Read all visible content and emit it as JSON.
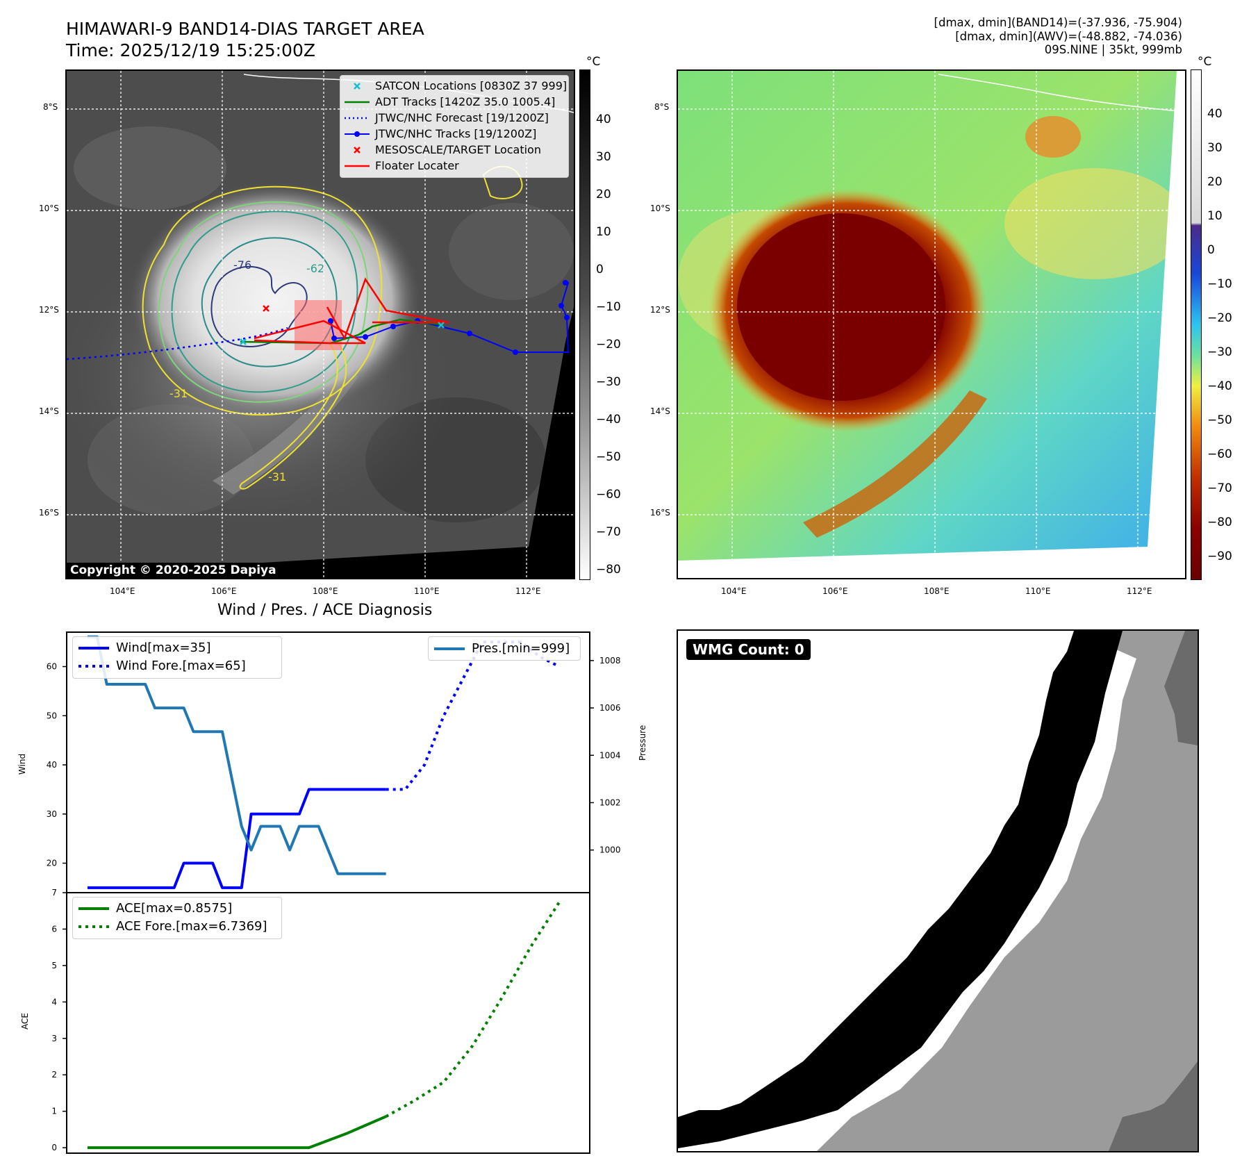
{
  "header": {
    "title_line1": "HIMAWARI-9 BAND14-DIAS TARGET AREA",
    "title_line2": "Time: 2025/12/19 15:25:00Z",
    "info_line1": "[dmax, dmin](BAND14)=(-37.936, -75.904)",
    "info_line2": "[dmax, dmin](AWV)=(-48.882, -74.036)",
    "info_line3": "09S.NINE | 35kt, 999mb"
  },
  "map_axes": {
    "lat_labels": [
      "8°S",
      "10°S",
      "12°S",
      "14°S",
      "16°S"
    ],
    "lon_labels": [
      "104°E",
      "106°E",
      "108°E",
      "110°E",
      "112°E"
    ]
  },
  "ir_panel": {
    "legend": [
      {
        "label": "SATCON Locations [0830Z 37 999]",
        "symbol": "x",
        "color": "#17becf"
      },
      {
        "label": "ADT Tracks [1420Z 35.0 1005.4]",
        "symbol": "line",
        "color": "#008000"
      },
      {
        "label": "JTWC/NHC Forecast [19/1200Z]",
        "symbol": "dotted",
        "color": "#0000ff"
      },
      {
        "label": "JTWC/NHC Tracks [19/1200Z]",
        "symbol": "line-dot",
        "color": "#0000ff"
      },
      {
        "label": "MESOSCALE/TARGET Location",
        "symbol": "x",
        "color": "#ff0000"
      },
      {
        "label": "Floater Locater",
        "symbol": "line",
        "color": "#ff0000"
      }
    ],
    "contour_labels": [
      "-76",
      "-62",
      "-31",
      "-31"
    ],
    "colorbar_unit": "°C",
    "colorbar_ticks": [
      "40",
      "30",
      "20",
      "10",
      "0",
      "−10",
      "−20",
      "−30",
      "−40",
      "−50",
      "−60",
      "−70",
      "−80"
    ],
    "copyright": "Copyright © 2020-2025 Dapiya"
  },
  "awv_panel": {
    "colorbar_unit": "°C",
    "colorbar_ticks": [
      "40",
      "30",
      "20",
      "10",
      "0",
      "−10",
      "−20",
      "−30",
      "−40",
      "−50",
      "−60",
      "−70",
      "−80",
      "−90"
    ]
  },
  "diagnosis": {
    "title": "Wind / Pres. / ACE Diagnosis"
  },
  "wmg_panel": {
    "label": "WMG Count: 0"
  },
  "chart_data": [
    {
      "type": "line",
      "title": "Wind / Pres. / ACE Diagnosis",
      "ylabel": "Wind",
      "y2label": "Pressure",
      "ylim": [
        14,
        67
      ],
      "y2lim": [
        998.2,
        1009.2
      ],
      "yticks": [
        "20",
        "30",
        "40",
        "50",
        "60"
      ],
      "y2ticks": [
        "1000",
        "1002",
        "1004",
        "1006",
        "1008"
      ],
      "series": [
        {
          "name": "Wind[max=35]",
          "axis": "left",
          "color": "#0000ff",
          "style": "solid",
          "x": [
            0,
            1,
            2,
            3,
            4,
            5,
            6,
            7,
            8,
            9,
            10,
            11,
            12,
            13,
            14,
            15,
            16,
            17,
            18,
            19,
            20,
            21,
            22,
            23,
            24,
            25,
            26,
            27,
            28,
            29,
            30,
            31
          ],
          "values": [
            15,
            15,
            15,
            15,
            15,
            15,
            15,
            15,
            15,
            15,
            20,
            20,
            20,
            20,
            15,
            15,
            15,
            30,
            30,
            30,
            30,
            30,
            30,
            35,
            35,
            35,
            35,
            35,
            35,
            35,
            35,
            35
          ]
        },
        {
          "name": "Wind Fore.[max=65]",
          "axis": "left",
          "color": "#0000ff",
          "style": "dotted",
          "x": [
            31,
            33,
            35,
            37,
            39,
            41,
            43,
            45,
            47,
            49
          ],
          "values": [
            35,
            35,
            40,
            50,
            57.5,
            65,
            65,
            65,
            62,
            60
          ]
        },
        {
          "name": "Pres.[min=999]",
          "axis": "right",
          "color": "#1f77b4",
          "style": "solid",
          "x": [
            0,
            1,
            2,
            3,
            4,
            5,
            6,
            7,
            8,
            9,
            10,
            11,
            12,
            13,
            14,
            15,
            16,
            17,
            18,
            19,
            20,
            21,
            22,
            23,
            24,
            25,
            26,
            27,
            28,
            29,
            30,
            31
          ],
          "values": [
            1009,
            1009,
            1007,
            1007,
            1007,
            1007,
            1007,
            1006,
            1006,
            1006,
            1006,
            1005,
            1005,
            1005,
            1005,
            1003,
            1001,
            1000,
            1001,
            1001,
            1001,
            1000,
            1001,
            1001,
            1001,
            1000,
            999,
            999,
            999,
            999,
            999,
            999
          ]
        }
      ]
    },
    {
      "type": "line",
      "ylabel": "ACE",
      "ylim": [
        -0.15,
        7
      ],
      "yticks": [
        "0",
        "1",
        "2",
        "3",
        "4",
        "5",
        "6",
        "7"
      ],
      "series": [
        {
          "name": "ACE[max=0.8575]",
          "color": "#008000",
          "style": "solid",
          "x": [
            0,
            5,
            10,
            15,
            20,
            23,
            27,
            31
          ],
          "values": [
            0,
            0,
            0,
            0,
            0,
            0,
            0.4,
            0.8575
          ]
        },
        {
          "name": "ACE Fore.[max=6.7369]",
          "color": "#008000",
          "style": "dotted",
          "x": [
            31,
            34,
            37,
            40,
            43,
            46,
            49
          ],
          "values": [
            0.8575,
            1.3,
            1.8,
            2.8,
            4.1,
            5.5,
            6.7369
          ]
        }
      ]
    }
  ]
}
